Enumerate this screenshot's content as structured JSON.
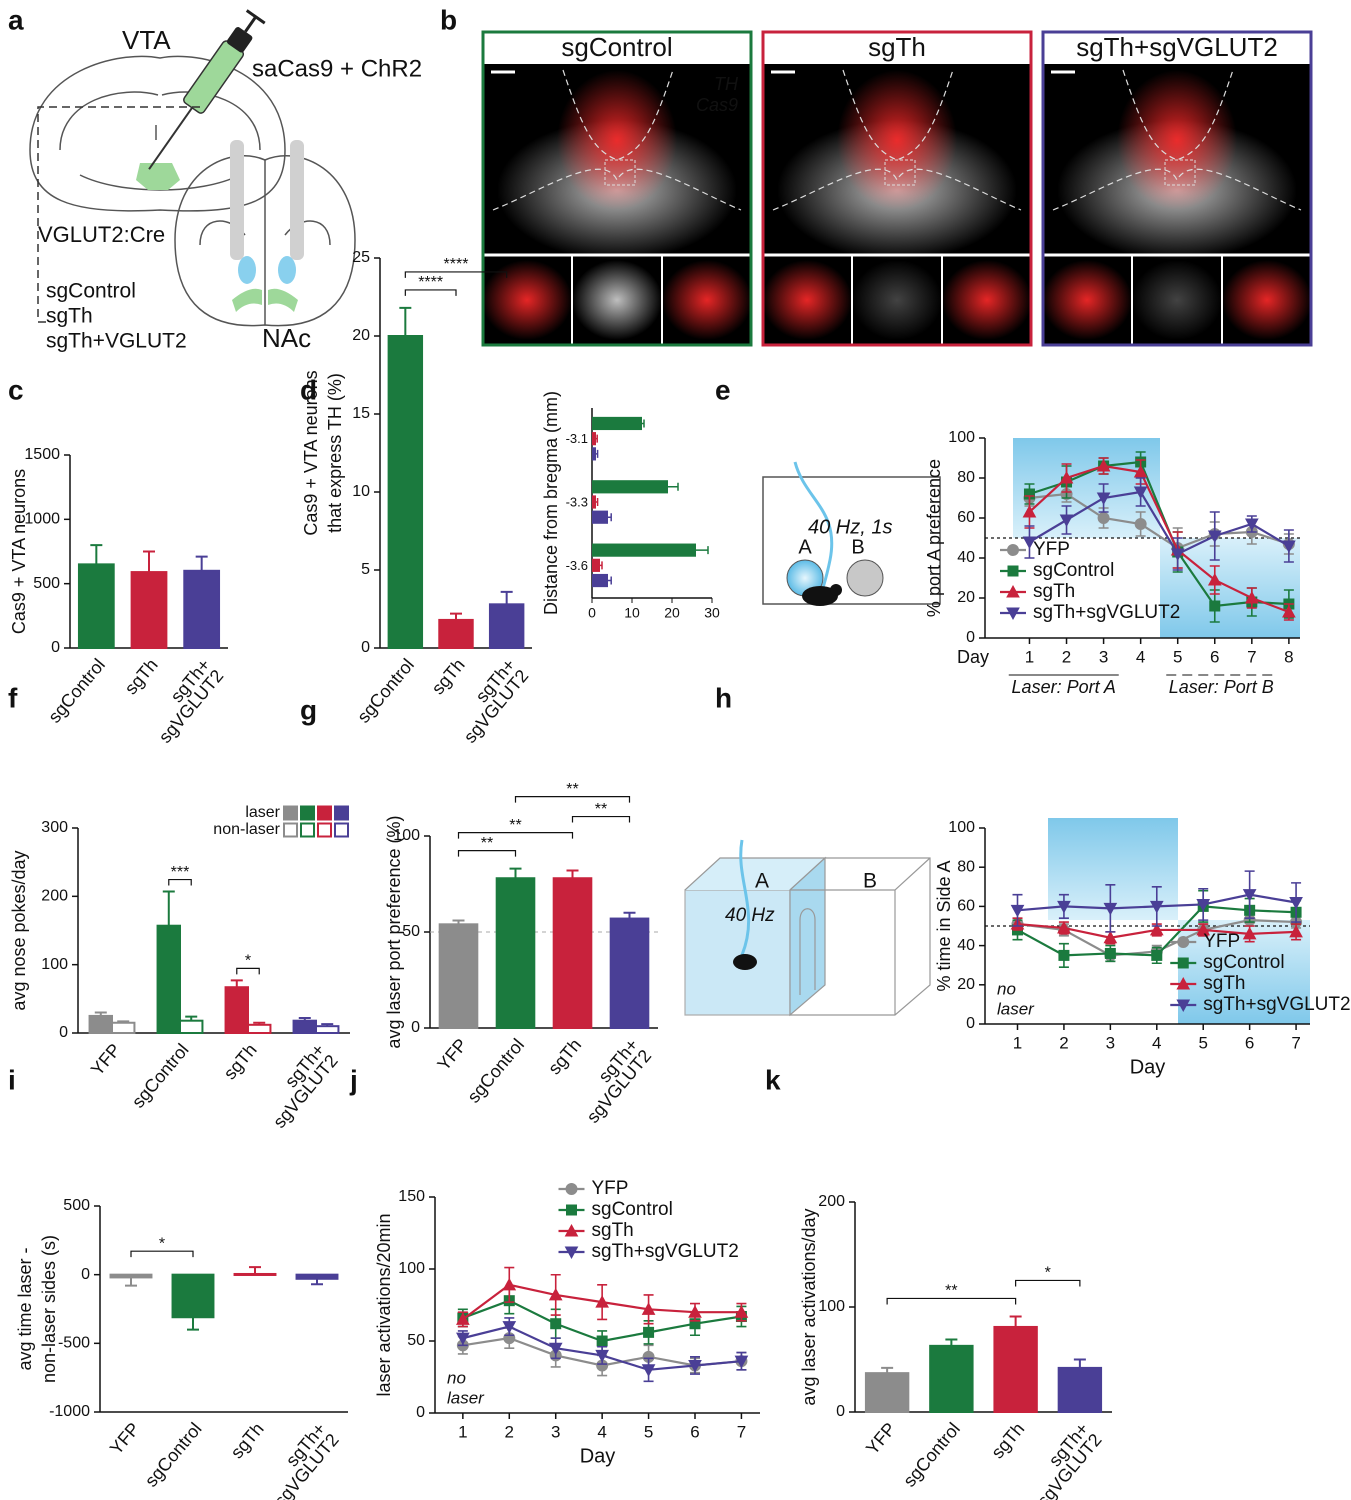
{
  "panel_labels": [
    "a",
    "b",
    "c",
    "d",
    "e",
    "f",
    "g",
    "h",
    "i",
    "j",
    "k"
  ],
  "panel_a": {
    "region": "VTA",
    "virus": "saCas9 + ChR2",
    "mouse": "VGLUT2:Cre",
    "target": "NAc",
    "groups": [
      "sgControl",
      "sgTh",
      "sgTh+VGLUT2"
    ],
    "group_colors": [
      "#1b7a3e",
      "#c8223c",
      "#4a3f96"
    ]
  },
  "panel_b": {
    "titles": [
      "sgControl",
      "sgTh",
      "sgTh+sgVGLUT2"
    ],
    "title_colors": [
      "#1b7a3e",
      "#c8223c",
      "#4a3f96"
    ],
    "stain_labels": [
      "TH",
      "Cas9"
    ]
  },
  "chart_data": [
    {
      "type": "bar",
      "ylabel": "Cas9 + VTA neurons",
      "categories": [
        "sgControl",
        "sgTh",
        [
          "sgTh+",
          "sgVGLUT2"
        ]
      ],
      "category_colors": [
        "#1b7a3e",
        "#c8223c",
        "#4a3f96"
      ],
      "series": [
        {
          "style": "filled",
          "colors": [
            "#1b7a3e",
            "#c8223c",
            "#4a3f96"
          ],
          "values": [
            650,
            590,
            600
          ],
          "errors": [
            150,
            160,
            110
          ]
        }
      ],
      "ylim": [
        0,
        1500
      ],
      "yticks": [
        0,
        500,
        1000,
        1500
      ]
    },
    {
      "type": "bar",
      "ylabel": [
        "Cas9 + VTA neurons",
        "that express TH (%)"
      ],
      "categories": [
        "sgControl",
        "sgTh",
        [
          "sgTh+",
          "sgVGLUT2"
        ]
      ],
      "category_colors": [
        "#1b7a3e",
        "#c8223c",
        "#4a3f96"
      ],
      "series": [
        {
          "style": "filled",
          "colors": [
            "#1b7a3e",
            "#c8223c",
            "#4a3f96"
          ],
          "values": [
            20,
            1.8,
            2.8
          ],
          "errors": [
            1.8,
            0.4,
            0.8
          ]
        }
      ],
      "ylim": [
        0,
        25
      ],
      "yticks": [
        0,
        5,
        10,
        15,
        20,
        25
      ],
      "significance": [
        {
          "label": "****",
          "pair": [
            0,
            1
          ]
        },
        {
          "label": "****",
          "pair": [
            0,
            2
          ]
        }
      ]
    },
    {
      "type": "hbar",
      "ylabel": "Distance from bregma (mm)",
      "categories": [
        "-3.1",
        "-3.3",
        "-3.6"
      ],
      "series": [
        {
          "color": "#1b7a3e",
          "values": [
            12.5,
            19,
            26
          ],
          "errors": [
            0.5,
            2.5,
            3
          ]
        },
        {
          "color": "#c8223c",
          "values": [
            1,
            1,
            2
          ],
          "errors": [
            0.3,
            0.4,
            0.5
          ]
        },
        {
          "color": "#4a3f96",
          "values": [
            1,
            4,
            4
          ],
          "errors": [
            0.4,
            0.8,
            0.8
          ]
        }
      ],
      "xlim": [
        0,
        30
      ],
      "xticks": [
        0,
        10,
        20,
        30
      ]
    },
    {
      "type": "line",
      "ylabel": "% port A preference",
      "xlabel": "Day",
      "xlabel_side": "left",
      "x": [
        1,
        2,
        3,
        4,
        5,
        6,
        7,
        8
      ],
      "xlim": [
        -0.2,
        8.3
      ],
      "xticks": [
        1,
        2,
        3,
        4,
        5,
        6,
        7,
        8
      ],
      "ylim": [
        0,
        100
      ],
      "yticks": [
        0,
        20,
        40,
        60,
        80,
        100
      ],
      "reference_line": 50,
      "legend": "lower-left",
      "annotations": [
        "Laser: Port A",
        "Laser: Port B"
      ],
      "diagram": {
        "stimulus": "40 Hz, 1s",
        "ports": [
          "A",
          "B"
        ]
      },
      "series": [
        {
          "name": "YFP",
          "color": "#8c8c8c",
          "marker": "circle",
          "values": [
            70,
            72,
            60,
            57,
            45,
            52,
            53,
            47
          ],
          "errors": [
            4,
            4,
            5,
            6,
            10,
            6,
            6,
            5
          ]
        },
        {
          "name": "sgControl",
          "color": "#1b7a3e",
          "marker": "square",
          "values": [
            72,
            78,
            86,
            88,
            43,
            16,
            18,
            17
          ],
          "errors": [
            5,
            8,
            4,
            5,
            10,
            8,
            7,
            7
          ]
        },
        {
          "name": "sgTh",
          "color": "#c8223c",
          "marker": "triangle",
          "values": [
            63,
            80,
            86,
            83,
            44,
            29,
            20,
            13
          ],
          "errors": [
            8,
            7,
            4,
            6,
            9,
            7,
            5,
            4
          ]
        },
        {
          "name": "sgTh+sgVGLUT2",
          "color": "#4a3f96",
          "marker": "triangle-down",
          "values": [
            48,
            59,
            70,
            73,
            42,
            51,
            57,
            46
          ],
          "errors": [
            8,
            7,
            7,
            7,
            8,
            12,
            4,
            8
          ]
        }
      ]
    },
    {
      "type": "bar",
      "ylabel": "avg nose pokes/day",
      "categories": [
        "YFP",
        "sgControl",
        "sgTh",
        [
          "sgTh+",
          "sgVGLUT2"
        ]
      ],
      "category_colors": [
        "#8c8c8c",
        "#1b7a3e",
        "#c8223c",
        "#4a3f96"
      ],
      "series": [
        {
          "name": "laser",
          "style": "filled",
          "colors": [
            "#8c8c8c",
            "#1b7a3e",
            "#c8223c",
            "#4a3f96"
          ],
          "values": [
            25,
            157,
            67,
            18
          ],
          "errors": [
            5,
            50,
            10,
            4
          ]
        },
        {
          "name": "non-laser",
          "style": "hollow",
          "colors": [
            "#8c8c8c",
            "#1b7a3e",
            "#c8223c",
            "#4a3f96"
          ],
          "values": [
            15,
            18,
            12,
            10
          ],
          "errors": [
            2,
            6,
            3,
            3
          ]
        }
      ],
      "ylim": [
        0,
        300
      ],
      "yticks": [
        0,
        100,
        200,
        300
      ],
      "legend": "upper-right",
      "significance": [
        {
          "label": "***",
          "category": 1
        },
        {
          "label": "*",
          "category": 2
        }
      ]
    },
    {
      "type": "bar",
      "ylabel": "avg laser port preference (%)",
      "categories": [
        "YFP",
        "sgControl",
        "sgTh",
        [
          "sgTh+",
          "sgVGLUT2"
        ]
      ],
      "category_colors": [
        "#8c8c8c",
        "#1b7a3e",
        "#c8223c",
        "#4a3f96"
      ],
      "series": [
        {
          "style": "filled",
          "colors": [
            "#8c8c8c",
            "#1b7a3e",
            "#c8223c",
            "#4a3f96"
          ],
          "values": [
            54,
            78,
            78,
            57
          ],
          "errors": [
            2,
            5,
            4,
            3
          ]
        }
      ],
      "ylim": [
        0,
        100
      ],
      "yticks": [
        0,
        50,
        100
      ],
      "reference_line": 50,
      "significance": [
        {
          "label": "**",
          "pair": [
            0,
            1
          ]
        },
        {
          "label": "**",
          "pair": [
            0,
            2
          ]
        },
        {
          "label": "**",
          "pair": [
            2,
            3
          ]
        },
        {
          "label": "**",
          "pair": [
            1,
            3
          ]
        }
      ]
    },
    {
      "type": "line",
      "ylabel": "% time in Side A",
      "xlabel": "Day",
      "x": [
        1,
        2,
        3,
        4,
        5,
        6,
        7
      ],
      "xlim": [
        0.3,
        7.3
      ],
      "xticks": [
        1,
        2,
        3,
        4,
        5,
        6,
        7
      ],
      "ylim": [
        0,
        100
      ],
      "yticks": [
        0,
        20,
        40,
        60,
        80,
        100
      ],
      "reference_line": 50,
      "legend": "lower-right",
      "note": [
        "no",
        "laser"
      ],
      "diagram": {
        "stimulus": "40 Hz",
        "sides": [
          "A",
          "B"
        ]
      },
      "series": [
        {
          "name": "YFP",
          "color": "#8c8c8c",
          "marker": "circle",
          "values": [
            51,
            48,
            35,
            37,
            48,
            53,
            52
          ],
          "errors": [
            3,
            3,
            3,
            3,
            3,
            3,
            3
          ]
        },
        {
          "name": "sgControl",
          "color": "#1b7a3e",
          "marker": "square",
          "values": [
            48,
            35,
            36,
            35,
            60,
            58,
            57
          ],
          "errors": [
            5,
            6,
            4,
            4,
            8,
            6,
            6
          ]
        },
        {
          "name": "sgTh",
          "color": "#c8223c",
          "marker": "triangle",
          "values": [
            51,
            49,
            44,
            48,
            48,
            46,
            47
          ],
          "errors": [
            3,
            3,
            3,
            3,
            3,
            4,
            4
          ]
        },
        {
          "name": "sgTh+sgVGLUT2",
          "color": "#4a3f96",
          "marker": "triangle-down",
          "values": [
            58,
            60,
            59,
            60,
            61,
            66,
            62
          ],
          "errors": [
            8,
            6,
            12,
            10,
            8,
            12,
            10
          ]
        }
      ]
    },
    {
      "type": "bar",
      "ylabel": [
        "avg time laser -",
        "non-laser sides (s)"
      ],
      "categories": [
        "YFP",
        "sgControl",
        "sgTh",
        [
          "sgTh+",
          "sgVGLUT2"
        ]
      ],
      "category_colors": [
        "#8c8c8c",
        "#1b7a3e",
        "#c8223c",
        "#4a3f96"
      ],
      "series": [
        {
          "style": "filled",
          "colors": [
            "#8c8c8c",
            "#1b7a3e",
            "#c8223c",
            "#4a3f96"
          ],
          "values": [
            -20,
            -310,
            5,
            -30
          ],
          "errors": [
            60,
            90,
            50,
            40
          ]
        }
      ],
      "ylim": [
        -1000,
        500
      ],
      "yticks": [
        -1000,
        -500,
        0,
        500
      ],
      "significance": [
        {
          "label": "*",
          "pair": [
            0,
            1
          ]
        }
      ]
    },
    {
      "type": "line",
      "ylabel": "laser activations/20min",
      "xlabel": "Day",
      "x": [
        1,
        2,
        3,
        4,
        5,
        6,
        7
      ],
      "xlim": [
        0.4,
        7.4
      ],
      "xticks": [
        1,
        2,
        3,
        4,
        5,
        6,
        7
      ],
      "ylim": [
        0,
        150
      ],
      "yticks": [
        0,
        50,
        100,
        150
      ],
      "legend": "top-center",
      "note": [
        "no",
        "laser"
      ],
      "series": [
        {
          "name": "YFP",
          "color": "#8c8c8c",
          "marker": "circle",
          "values": [
            47,
            52,
            40,
            33,
            39,
            33,
            36
          ],
          "errors": [
            6,
            7,
            8,
            7,
            8,
            5,
            6
          ]
        },
        {
          "name": "sgControl",
          "color": "#1b7a3e",
          "marker": "square",
          "values": [
            66,
            78,
            62,
            50,
            56,
            62,
            67
          ],
          "errors": [
            6,
            9,
            10,
            7,
            8,
            8,
            7
          ]
        },
        {
          "name": "sgTh",
          "color": "#c8223c",
          "marker": "triangle",
          "values": [
            65,
            89,
            82,
            77,
            72,
            70,
            70
          ],
          "errors": [
            5,
            12,
            14,
            12,
            10,
            6,
            6
          ]
        },
        {
          "name": "sgTh+sgVGLUT2",
          "color": "#4a3f96",
          "marker": "triangle-down",
          "values": [
            52,
            60,
            45,
            40,
            30,
            33,
            36
          ],
          "errors": [
            5,
            6,
            7,
            6,
            8,
            6,
            6
          ]
        }
      ]
    },
    {
      "type": "bar",
      "ylabel": "avg laser activations/day",
      "categories": [
        "YFP",
        "sgControl",
        "sgTh",
        [
          "sgTh+",
          "sgVGLUT2"
        ]
      ],
      "category_colors": [
        "#8c8c8c",
        "#1b7a3e",
        "#c8223c",
        "#4a3f96"
      ],
      "series": [
        {
          "style": "filled",
          "colors": [
            "#8c8c8c",
            "#1b7a3e",
            "#c8223c",
            "#4a3f96"
          ],
          "values": [
            37,
            63,
            81,
            42
          ],
          "errors": [
            5,
            6,
            10,
            8
          ]
        }
      ],
      "ylim": [
        0,
        200
      ],
      "yticks": [
        0,
        100,
        200
      ],
      "significance": [
        {
          "label": "**",
          "pair": [
            0,
            2
          ]
        },
        {
          "label": "*",
          "pair": [
            2,
            3
          ]
        }
      ]
    }
  ]
}
